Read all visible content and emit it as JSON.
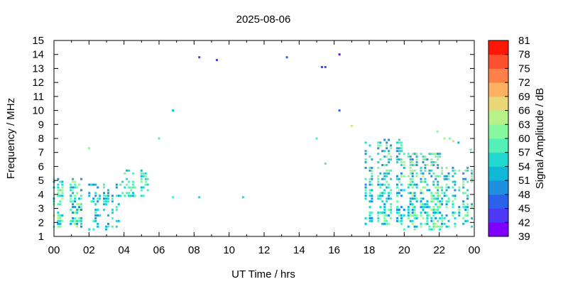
{
  "chart_data": {
    "type": "heatmap",
    "title": "2025-08-06",
    "xlabel": "UT Time / hrs",
    "ylabel": "Frequency / MHz",
    "xlim": [
      0,
      24
    ],
    "ylim": [
      1,
      15
    ],
    "x_tick_labels": [
      "00",
      "02",
      "04",
      "06",
      "08",
      "10",
      "12",
      "14",
      "16",
      "18",
      "20",
      "22",
      "00"
    ],
    "y_ticks": [
      1,
      2,
      3,
      4,
      5,
      6,
      7,
      8,
      9,
      10,
      11,
      12,
      13,
      14,
      15
    ],
    "colorbar": {
      "label": "Signal Amplitude / dB",
      "min": 39,
      "max": 81,
      "ticks": [
        39,
        42,
        45,
        48,
        51,
        54,
        57,
        60,
        63,
        66,
        69,
        72,
        75,
        78,
        81
      ],
      "colors": [
        "#8000ff",
        "#4c38f5",
        "#2a63ea",
        "#1e90df",
        "#10b7d6",
        "#22d9d1",
        "#55f0b8",
        "#87f7a0",
        "#b8f08a",
        "#e8d878",
        "#ffb060",
        "#ff8048",
        "#ff5030",
        "#ff1808"
      ]
    },
    "grid": false,
    "clusters": [
      {
        "x": [
          0.0,
          1.9
        ],
        "y": [
          1.7,
          5.3
        ],
        "density": 0.55,
        "amp": [
          48,
          66
        ]
      },
      {
        "x": [
          1.9,
          3.8
        ],
        "y": [
          1.5,
          4.8
        ],
        "density": 0.35,
        "amp": [
          48,
          60
        ]
      },
      {
        "x": [
          3.8,
          5.4
        ],
        "y": [
          3.9,
          5.9
        ],
        "density": 0.45,
        "amp": [
          51,
          63
        ]
      },
      {
        "x": [
          17.8,
          20.0
        ],
        "y": [
          1.9,
          8.0
        ],
        "density": 0.45,
        "amp": [
          48,
          63
        ]
      },
      {
        "x": [
          20.0,
          22.3
        ],
        "y": [
          1.5,
          7.0
        ],
        "density": 0.5,
        "amp": [
          48,
          66
        ]
      },
      {
        "x": [
          22.3,
          24.0
        ],
        "y": [
          1.7,
          6.1
        ],
        "density": 0.45,
        "amp": [
          48,
          63
        ]
      }
    ],
    "points": [
      {
        "x": 2.0,
        "y": 7.3,
        "amp": 60
      },
      {
        "x": 6.0,
        "y": 8.0,
        "amp": 57
      },
      {
        "x": 6.8,
        "y": 10.0,
        "amp": 51
      },
      {
        "x": 6.8,
        "y": 3.8,
        "amp": 57
      },
      {
        "x": 8.3,
        "y": 13.8,
        "amp": 42
      },
      {
        "x": 8.3,
        "y": 3.8,
        "amp": 54
      },
      {
        "x": 9.3,
        "y": 13.6,
        "amp": 42
      },
      {
        "x": 10.8,
        "y": 3.8,
        "amp": 54
      },
      {
        "x": 13.3,
        "y": 13.8,
        "amp": 45
      },
      {
        "x": 15.0,
        "y": 8.0,
        "amp": 57
      },
      {
        "x": 15.3,
        "y": 13.1,
        "amp": 42
      },
      {
        "x": 15.5,
        "y": 13.1,
        "amp": 45
      },
      {
        "x": 15.5,
        "y": 6.2,
        "amp": 57
      },
      {
        "x": 16.3,
        "y": 14.0,
        "amp": 39
      },
      {
        "x": 16.3,
        "y": 10.0,
        "amp": 45
      },
      {
        "x": 17.0,
        "y": 8.9,
        "amp": 66
      },
      {
        "x": 21.9,
        "y": 8.5,
        "amp": 60
      },
      {
        "x": 22.3,
        "y": 8.0,
        "amp": 63
      },
      {
        "x": 22.6,
        "y": 8.0,
        "amp": 60
      },
      {
        "x": 22.8,
        "y": 7.8,
        "amp": 66
      },
      {
        "x": 23.1,
        "y": 7.7,
        "amp": 51
      },
      {
        "x": 23.8,
        "y": 7.2,
        "amp": 57
      }
    ]
  }
}
